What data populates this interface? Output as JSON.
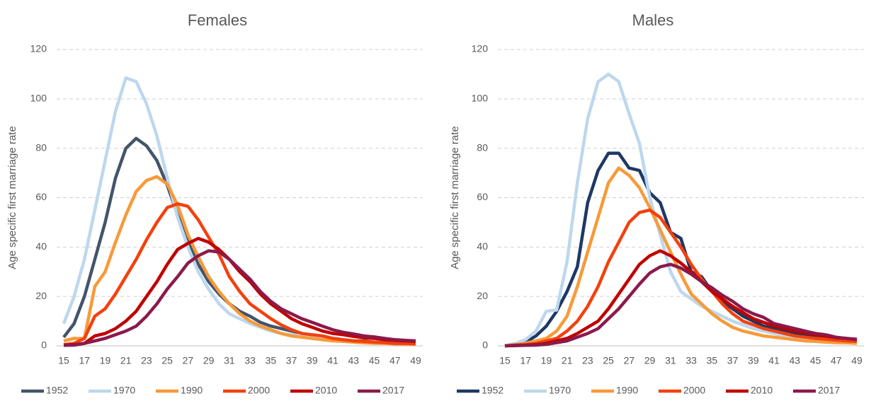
{
  "chart_data": [
    {
      "type": "line",
      "title": "Females",
      "y_label": "Age specific first marriage rate",
      "categories": [
        "15",
        null,
        "17",
        null,
        "19",
        null,
        "21",
        null,
        "23",
        null,
        "25",
        null,
        "27",
        null,
        "29",
        null,
        "31",
        null,
        "33",
        null,
        "35",
        null,
        "37",
        null,
        "39",
        null,
        "41",
        null,
        "43",
        null,
        "45",
        null,
        "47",
        null,
        "49"
      ],
      "ylim": [
        0,
        120
      ],
      "yticks": [
        0,
        20,
        40,
        60,
        80,
        100,
        120
      ],
      "grid": true,
      "legend": "bottom",
      "series": [
        {
          "name": "1952",
          "color": "#44546a",
          "values": [
            3.5,
            9,
            20,
            35,
            50,
            68,
            80,
            84,
            81,
            75,
            65,
            53,
            42,
            33,
            26,
            21,
            17,
            14,
            12,
            9.5,
            8,
            7,
            6,
            5,
            4,
            3.5,
            3,
            2.5,
            2,
            2,
            1.5,
            1.3,
            1.2,
            1,
            1
          ]
        },
        {
          "name": "1970",
          "color": "#bdd7ee",
          "values": [
            9,
            20,
            35,
            55,
            75,
            95,
            108.5,
            107,
            98,
            85,
            68,
            52,
            40,
            30,
            23,
            17,
            13,
            11,
            9,
            7.5,
            6,
            5,
            4.5,
            4,
            3.5,
            3,
            2.5,
            2,
            1.8,
            1.5,
            1.3,
            1.2,
            1,
            1,
            1
          ]
        },
        {
          "name": "1990",
          "color": "#f79a3a",
          "values": [
            2,
            3,
            3,
            24,
            30,
            42,
            53,
            62.5,
            67,
            68.5,
            65.5,
            57,
            45,
            36,
            28,
            22,
            17,
            13,
            10,
            8,
            6.5,
            5,
            4,
            3.5,
            3,
            2.5,
            2,
            1.8,
            1.5,
            1.2,
            1,
            1,
            0.8,
            0.7,
            0.6
          ]
        },
        {
          "name": "2000",
          "color": "#f2410f",
          "values": [
            0.5,
            1,
            3,
            12,
            15,
            21,
            28,
            35,
            43,
            50,
            56,
            57.5,
            56.5,
            51,
            44,
            37,
            28,
            22,
            17,
            14,
            11,
            8.5,
            6.5,
            5,
            4.5,
            4,
            3,
            2.5,
            2,
            1.8,
            1.5,
            1.3,
            1,
            1,
            0.8
          ]
        },
        {
          "name": "2010",
          "color": "#c00000",
          "values": [
            0.3,
            0.5,
            1,
            4,
            5,
            7,
            10,
            14,
            20,
            26,
            33,
            39,
            41.5,
            43.5,
            42,
            39,
            35,
            30,
            26,
            21,
            17,
            14,
            11,
            9,
            7.5,
            6,
            5,
            4.5,
            3.8,
            3.3,
            3,
            2.5,
            2.2,
            2,
            1.8
          ]
        },
        {
          "name": "2017",
          "color": "#8b1a4a",
          "values": [
            0.2,
            0.3,
            1,
            2,
            3,
            4.5,
            6,
            8,
            12,
            17,
            23,
            28,
            33.5,
            36.5,
            38.5,
            38,
            35,
            31,
            27,
            22,
            18,
            15,
            13,
            11,
            9.5,
            8,
            6.5,
            5.5,
            4.8,
            4,
            3.6,
            3,
            2.5,
            2.2,
            2
          ]
        }
      ]
    },
    {
      "type": "line",
      "title": "Males",
      "y_label": "Age specific first marriage rate",
      "categories": [
        "15",
        null,
        "17",
        null,
        "19",
        null,
        "21",
        null,
        "23",
        null,
        "25",
        null,
        "27",
        null,
        "29",
        null,
        "31",
        null,
        "33",
        null,
        "35",
        null,
        "37",
        null,
        "39",
        null,
        "41",
        null,
        "43",
        null,
        "45",
        null,
        "47",
        null,
        "49"
      ],
      "ylim": [
        0,
        120
      ],
      "yticks": [
        0,
        20,
        40,
        60,
        80,
        100,
        120
      ],
      "grid": true,
      "legend": "bottom",
      "series": [
        {
          "name": "1952",
          "color": "#1f3864",
          "values": [
            0,
            0.5,
            1.5,
            4,
            8,
            14,
            22,
            32,
            58,
            71,
            78,
            78,
            72,
            71,
            62,
            58,
            46,
            43.5,
            30,
            28,
            22,
            18,
            15,
            12,
            10,
            8,
            7,
            6,
            5,
            4.5,
            4,
            3.5,
            3,
            2.5,
            2
          ]
        },
        {
          "name": "1970",
          "color": "#bdd7ee",
          "values": [
            0,
            1,
            2.5,
            6,
            14,
            14.5,
            34,
            66,
            92,
            107,
            110,
            107,
            94,
            82,
            60,
            45,
            30,
            22,
            19,
            16,
            14,
            12,
            10,
            8.5,
            7,
            6,
            5,
            4,
            3.5,
            3,
            2.5,
            2.2,
            2,
            1.8,
            1.5
          ]
        },
        {
          "name": "1990",
          "color": "#f79a3a",
          "values": [
            0,
            0.5,
            1,
            2,
            3,
            6,
            12,
            24,
            38,
            52,
            66,
            72,
            69,
            64,
            56,
            47,
            38,
            29,
            21,
            17,
            13,
            10,
            7.5,
            6,
            5,
            4,
            3.5,
            3,
            2.5,
            2,
            1.8,
            1.5,
            1.3,
            1.2,
            1
          ]
        },
        {
          "name": "2000",
          "color": "#f2410f",
          "values": [
            0,
            0.3,
            0.5,
            1,
            2,
            3,
            6,
            10,
            16,
            24,
            34,
            42,
            50,
            54,
            55,
            52,
            46,
            40,
            33,
            27,
            22,
            17,
            13,
            10,
            8.5,
            7,
            6,
            5,
            4,
            3.5,
            3,
            2.7,
            2.3,
            2,
            1.8
          ]
        },
        {
          "name": "2010",
          "color": "#c00000",
          "values": [
            0,
            0.2,
            0.3,
            0.5,
            1,
            2,
            3,
            5,
            7.5,
            10,
            15,
            21,
            27,
            33,
            36.5,
            38.5,
            36.5,
            33.5,
            30,
            26,
            22,
            19,
            16,
            13.5,
            11,
            9.5,
            8,
            7,
            6,
            5.2,
            4.5,
            4,
            3.3,
            3,
            2.5
          ]
        },
        {
          "name": "2017",
          "color": "#8b1a4a",
          "values": [
            0,
            0.1,
            0.2,
            0.3,
            0.6,
            1.3,
            2,
            3.5,
            5,
            7,
            11,
            15,
            20,
            25,
            29.5,
            32,
            33,
            31.5,
            29,
            26,
            23.5,
            20.5,
            18,
            15,
            13,
            11.5,
            9,
            8,
            7,
            6,
            5,
            4.5,
            3.5,
            3,
            2.7
          ]
        }
      ]
    }
  ]
}
